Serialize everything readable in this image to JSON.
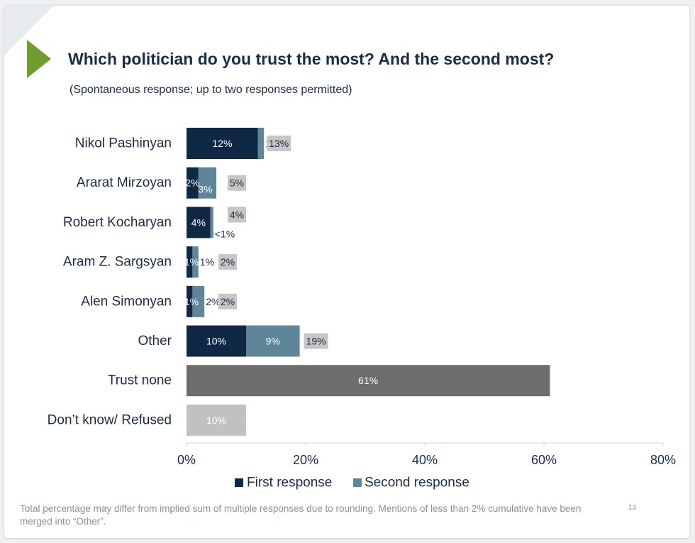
{
  "slide": {
    "title": "Which politician do you trust the most? And the second most?",
    "subtitle": "(Spontaneous response; up to two responses permitted)",
    "footnote": "Total percentage may differ from implied sum of multiple responses due to rounding. Mentions of less than 2% cumulative have been merged into “Other”.",
    "page_number": "13"
  },
  "colors": {
    "first": "#0f2846",
    "second": "#5f8599",
    "total_box": "#c6c6c6",
    "trust_none": "#6d6d6d",
    "dont_know": "#c1c1c1",
    "accent_arrow": "#6f9d2f",
    "text": "#1b2c45"
  },
  "chart_data": {
    "type": "bar",
    "orientation": "horizontal",
    "stacked": true,
    "categories": [
      "Nikol Pashinyan",
      "Ararat Mirzoyan",
      "Robert Kocharyan",
      "Aram Z. Sargsyan",
      "Alen Simonyan",
      "Other",
      "Trust none",
      "Don’t know/ Refused"
    ],
    "series": [
      {
        "name": "First response",
        "values": [
          12,
          2,
          4,
          1,
          1,
          10,
          null,
          null
        ],
        "labels": [
          "12%",
          "2%",
          "4%",
          "1%",
          "1%",
          "10%",
          "",
          ""
        ]
      },
      {
        "name": "Second response",
        "values": [
          1,
          3,
          0.5,
          1,
          2,
          9,
          null,
          null
        ],
        "labels": [
          "1%",
          "3%",
          "<1%",
          "1%",
          "2%",
          "9%",
          "",
          ""
        ]
      }
    ],
    "single_values": {
      "Trust none": {
        "value": 61,
        "label": "61%"
      },
      "Don’t know/ Refused": {
        "value": 10,
        "label": "10%"
      }
    },
    "totals": [
      {
        "value": 13,
        "label": "13%"
      },
      {
        "value": 5,
        "label": "5%"
      },
      {
        "value": 4,
        "label": "4%"
      },
      {
        "value": 2,
        "label": "2%"
      },
      {
        "value": 2,
        "label": "2%"
      },
      {
        "value": 19,
        "label": "19%"
      },
      null,
      null
    ],
    "xlim": [
      0,
      80
    ],
    "x_ticks": [
      0,
      20,
      40,
      60,
      80
    ],
    "x_tick_labels": [
      "0%",
      "20%",
      "40%",
      "60%",
      "80%"
    ],
    "legend": {
      "position": "bottom",
      "entries": [
        "First response",
        "Second response"
      ]
    },
    "grid": false,
    "title": "",
    "xlabel": "",
    "ylabel": ""
  }
}
